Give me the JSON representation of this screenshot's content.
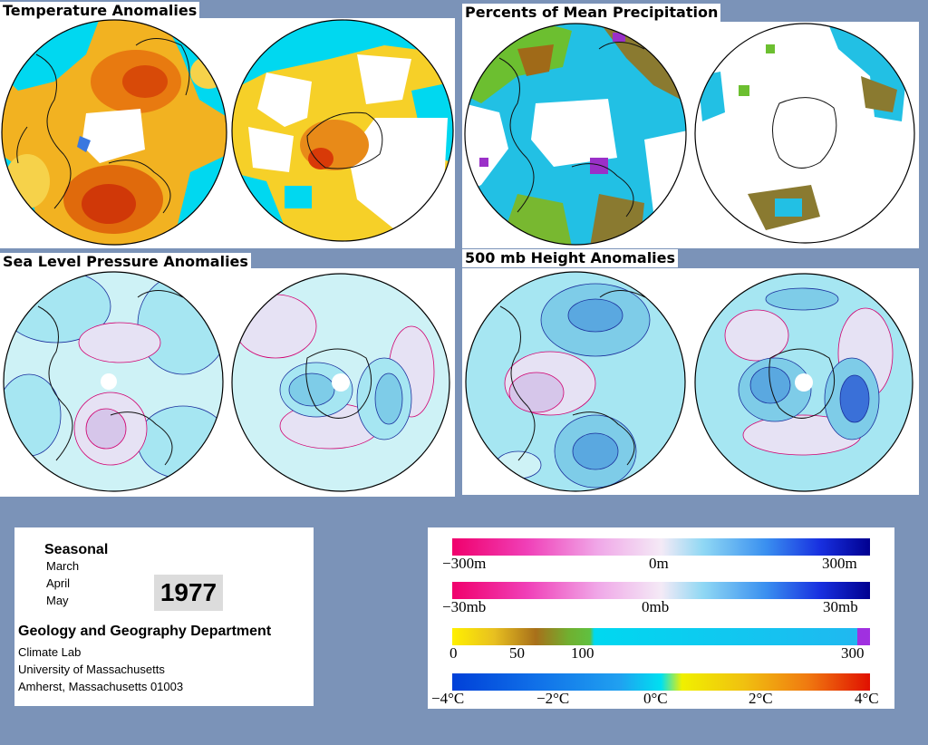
{
  "panels": {
    "temperature": {
      "title": "Temperature Anomalies"
    },
    "precipitation": {
      "title": "Percents of Mean Precipitation"
    },
    "slp": {
      "title": "Sea Level Pressure Anomalies"
    },
    "height500": {
      "title": "500 mb Height Anomalies"
    }
  },
  "info": {
    "season": "Seasonal",
    "months": [
      "March",
      "April",
      "May"
    ],
    "year": "1977",
    "department": "Geology and Geography Department",
    "address": [
      "Climate Lab",
      "University of Massachusetts",
      "Amherst, Massachusetts 01003"
    ]
  },
  "legends": {
    "height": {
      "labels": [
        "−300m",
        "0m",
        "300m"
      ]
    },
    "pressure": {
      "labels": [
        "−30mb",
        "0mb",
        "30mb"
      ]
    },
    "precip": {
      "labels": [
        "0",
        "50",
        "100",
        "300"
      ]
    },
    "temp": {
      "labels": [
        "−4°C",
        "−2°C",
        "0°C",
        "2°C",
        "4°C"
      ]
    }
  },
  "colors": {
    "ocean_blue": "#00d8f0",
    "warm_orange": "#f0a020",
    "hot_red": "#e02000",
    "contour_blue": "#1a2e9c",
    "contour_pink": "#d00070",
    "light_cyan": "#cef2f6",
    "mid_cyan": "#a6e6f2"
  }
}
